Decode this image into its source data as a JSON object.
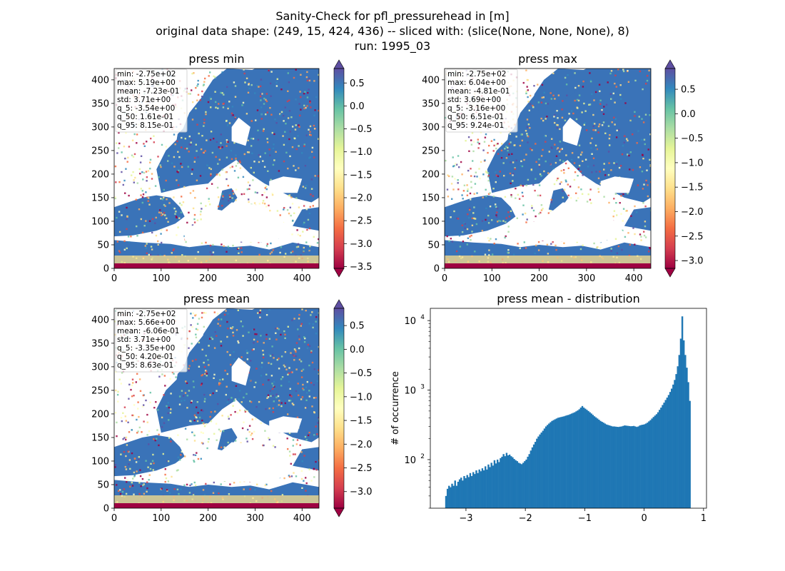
{
  "figure": {
    "title_lines": [
      "Sanity-Check for pfl_pressurehead in [m]",
      "original data shape: (249, 15, 424, 436) -- sliced with: (slice(None, None, None), 8)",
      "run: 1995_03"
    ]
  },
  "maps": [
    {
      "title": "press min",
      "stats": [
        "min: -2.75e+02",
        "max: 5.19e+00",
        "mean: -7.23e-01",
        "std: 3.71e+00",
        "q_5: -3.54e+00",
        "q_50: 1.61e-01",
        "q_95: 8.15e-01"
      ],
      "x_ticks": [
        "0",
        "100",
        "200",
        "300",
        "400"
      ],
      "y_ticks": [
        "0",
        "50",
        "100",
        "150",
        "200",
        "250",
        "300",
        "350",
        "400"
      ],
      "colorbar_ticks": [
        "0.5",
        "0.0",
        "−0.5",
        "−1.0",
        "−1.5",
        "−2.0",
        "−2.5",
        "−3.0",
        "−3.5"
      ],
      "colorbar_values": [
        0.5,
        0.0,
        -0.5,
        -1.0,
        -1.5,
        -2.0,
        -2.5,
        -3.0,
        -3.5
      ],
      "vmin": -3.54,
      "vmax": 0.815
    },
    {
      "title": "press max",
      "stats": [
        "min: -2.75e+02",
        "max: 6.04e+00",
        "mean: -4.81e-01",
        "std: 3.69e+00",
        "q_5: -3.16e+00",
        "q_50: 6.51e-01",
        "q_95: 9.24e-01"
      ],
      "x_ticks": [
        "0",
        "100",
        "200",
        "300",
        "400"
      ],
      "y_ticks": [
        "0",
        "50",
        "100",
        "150",
        "200",
        "250",
        "300",
        "350",
        "400"
      ],
      "colorbar_ticks": [
        "0.5",
        "0.0",
        "−0.5",
        "−1.0",
        "−1.5",
        "−2.0",
        "−2.5",
        "−3.0"
      ],
      "colorbar_values": [
        0.5,
        0.0,
        -0.5,
        -1.0,
        -1.5,
        -2.0,
        -2.5,
        -3.0
      ],
      "vmin": -3.16,
      "vmax": 0.924
    },
    {
      "title": "press mean",
      "stats": [
        "min: -2.75e+02",
        "max: 5.66e+00",
        "mean: -6.06e-01",
        "std: 3.71e+00",
        "q_5: -3.35e+00",
        "q_50: 4.20e-01",
        "q_95: 8.63e-01"
      ],
      "x_ticks": [
        "0",
        "100",
        "200",
        "300",
        "400"
      ],
      "y_ticks": [
        "0",
        "50",
        "100",
        "150",
        "200",
        "250",
        "300",
        "350",
        "400"
      ],
      "colorbar_ticks": [
        "0.5",
        "0.0",
        "−0.5",
        "−1.0",
        "−1.5",
        "−2.0",
        "−2.5",
        "−3.0"
      ],
      "colorbar_values": [
        0.5,
        0.0,
        -0.5,
        -1.0,
        -1.5,
        -2.0,
        -2.5,
        -3.0
      ],
      "vmin": -3.35,
      "vmax": 0.863
    }
  ],
  "colormap": [
    "#9e0142",
    "#d53e4f",
    "#f46d43",
    "#fdae61",
    "#fee08b",
    "#ffffbf",
    "#e6f598",
    "#abdda4",
    "#66c2a5",
    "#3288bd",
    "#5e4fa2"
  ],
  "land_color": "#3a73b8",
  "chart_data": {
    "type": "bar",
    "title": "press mean - distribution",
    "xlabel": "",
    "ylabel": "# of occurrence",
    "yscale": "log",
    "xlim": [
      -3.6,
      1.05
    ],
    "ylim": [
      20,
      15000
    ],
    "x_ticks": [
      "−3",
      "−2",
      "−1",
      "0",
      "1"
    ],
    "x_tick_values": [
      -3,
      -2,
      -1,
      0,
      1
    ],
    "y_ticks": [
      {
        "base": "10",
        "exp": "2",
        "value": 100
      },
      {
        "base": "10",
        "exp": "3",
        "value": 1000
      },
      {
        "base": "10",
        "exp": "4",
        "value": 10000
      }
    ],
    "color": "#1f77b4",
    "bin_width": 0.0255,
    "bin_start": -3.35,
    "counts": [
      30,
      38,
      42,
      40,
      45,
      42,
      50,
      42,
      48,
      52,
      55,
      50,
      58,
      54,
      60,
      56,
      64,
      58,
      66,
      62,
      70,
      64,
      72,
      68,
      75,
      70,
      80,
      72,
      85,
      78,
      90,
      82,
      98,
      88,
      100,
      92,
      105,
      110,
      120,
      112,
      125,
      115,
      118,
      112,
      108,
      102,
      98,
      95,
      90,
      88,
      86,
      90,
      95,
      100,
      110,
      120,
      135,
      150,
      165,
      180,
      200,
      215,
      230,
      245,
      260,
      280,
      300,
      315,
      330,
      345,
      360,
      370,
      380,
      390,
      400,
      405,
      410,
      415,
      420,
      428,
      435,
      440,
      450,
      460,
      470,
      480,
      495,
      510,
      530,
      560,
      590,
      560,
      540,
      520,
      500,
      480,
      460,
      440,
      420,
      405,
      390,
      375,
      360,
      350,
      340,
      330,
      320,
      315,
      310,
      305,
      300,
      300,
      298,
      296,
      295,
      298,
      300,
      305,
      310,
      308,
      306,
      304,
      302,
      303,
      305,
      300,
      295,
      300,
      310,
      315,
      318,
      322,
      330,
      340,
      355,
      370,
      390,
      410,
      430,
      450,
      480,
      520,
      560,
      610,
      660,
      720,
      780,
      850,
      940,
      1050,
      1200,
      1400,
      1700,
      2200,
      3200,
      5500,
      11500,
      5200,
      3200,
      2100,
      1300,
      700
    ]
  }
}
